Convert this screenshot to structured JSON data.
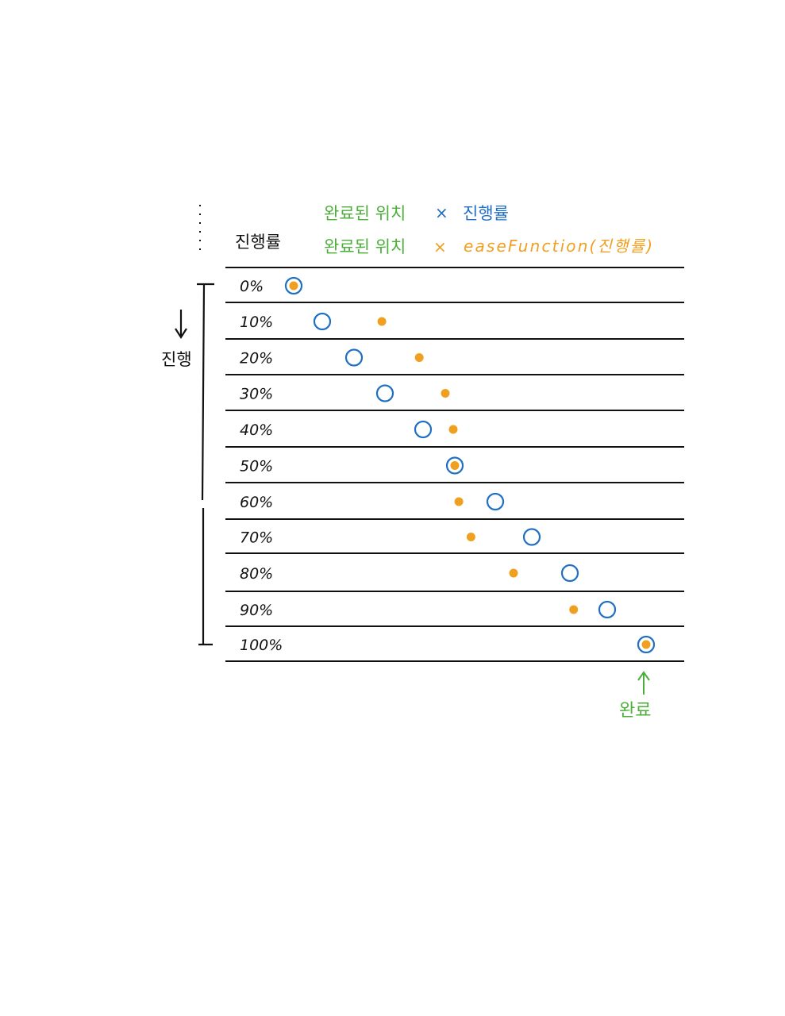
{
  "header": {
    "column_label": "진행률",
    "formula_linear": {
      "left": "완료된 위치",
      "op": "×",
      "right": "진행률"
    },
    "formula_eased": {
      "left": "완료된 위치",
      "op": "×",
      "right": "easeFunction(진행률)"
    }
  },
  "side": {
    "direction_label": "진행"
  },
  "footer": {
    "done_label": "완료"
  },
  "colors": {
    "green": "#4caf3a",
    "blue": "#1f6fc4",
    "orange": "#f0a020",
    "ink": "#111111"
  },
  "rows": [
    {
      "label": "0%",
      "progress": 0.0,
      "eased": 0.0
    },
    {
      "label": "10%",
      "progress": 0.1,
      "eased": 0.29
    },
    {
      "label": "20%",
      "progress": 0.2,
      "eased": 0.39
    },
    {
      "label": "30%",
      "progress": 0.3,
      "eased": 0.47
    },
    {
      "label": "40%",
      "progress": 0.4,
      "eased": 0.495
    },
    {
      "label": "50%",
      "progress": 0.5,
      "eased": 0.5
    },
    {
      "label": "60%",
      "progress": 0.6,
      "eased": 0.51
    },
    {
      "label": "70%",
      "progress": 0.7,
      "eased": 0.54
    },
    {
      "label": "80%",
      "progress": 0.8,
      "eased": 0.65
    },
    {
      "label": "90%",
      "progress": 0.9,
      "eased": 0.81
    },
    {
      "label": "100%",
      "progress": 1.0,
      "eased": 1.0
    }
  ]
}
